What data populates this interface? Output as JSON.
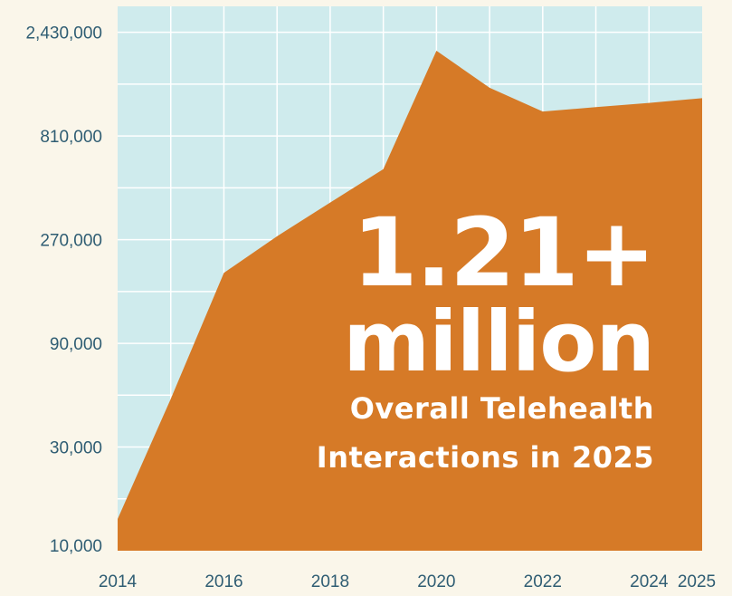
{
  "colors": {
    "background": "#faf6ea",
    "plot_background": "#cfebed",
    "grid": "#ffffff",
    "area_fill": "#d67a27",
    "tick_text": "#2f5d73",
    "headline_text": "#ffffff"
  },
  "headline": {
    "number": "1.21+",
    "unit": "million",
    "line1": "Overall Telehealth",
    "line2": "Interactions in 2025"
  },
  "chart_data": {
    "type": "area",
    "x": [
      2014,
      2015,
      2016,
      2017,
      2018,
      2019,
      2020,
      2021,
      2022,
      2023,
      2024,
      2025
    ],
    "values": [
      14000,
      50000,
      190000,
      280000,
      400000,
      570000,
      2000000,
      1350000,
      1050000,
      1100000,
      1150000,
      1210000
    ],
    "y_scale": "log",
    "ylim": [
      10000,
      3200000
    ],
    "xlim": [
      2014,
      2025
    ],
    "y_ticks": [
      10000,
      30000,
      90000,
      270000,
      810000,
      2430000
    ],
    "y_tick_labels": [
      "10,000",
      "30,000",
      "90,000",
      "270,000",
      "810,000",
      "2,430,000"
    ],
    "x_ticks": [
      2014,
      2016,
      2018,
      2020,
      2022,
      2024,
      2025
    ],
    "x_tick_labels": [
      "2014",
      "2016",
      "2018",
      "2020",
      "2022",
      "2024",
      "2025"
    ],
    "grid": true,
    "legend": "none"
  }
}
